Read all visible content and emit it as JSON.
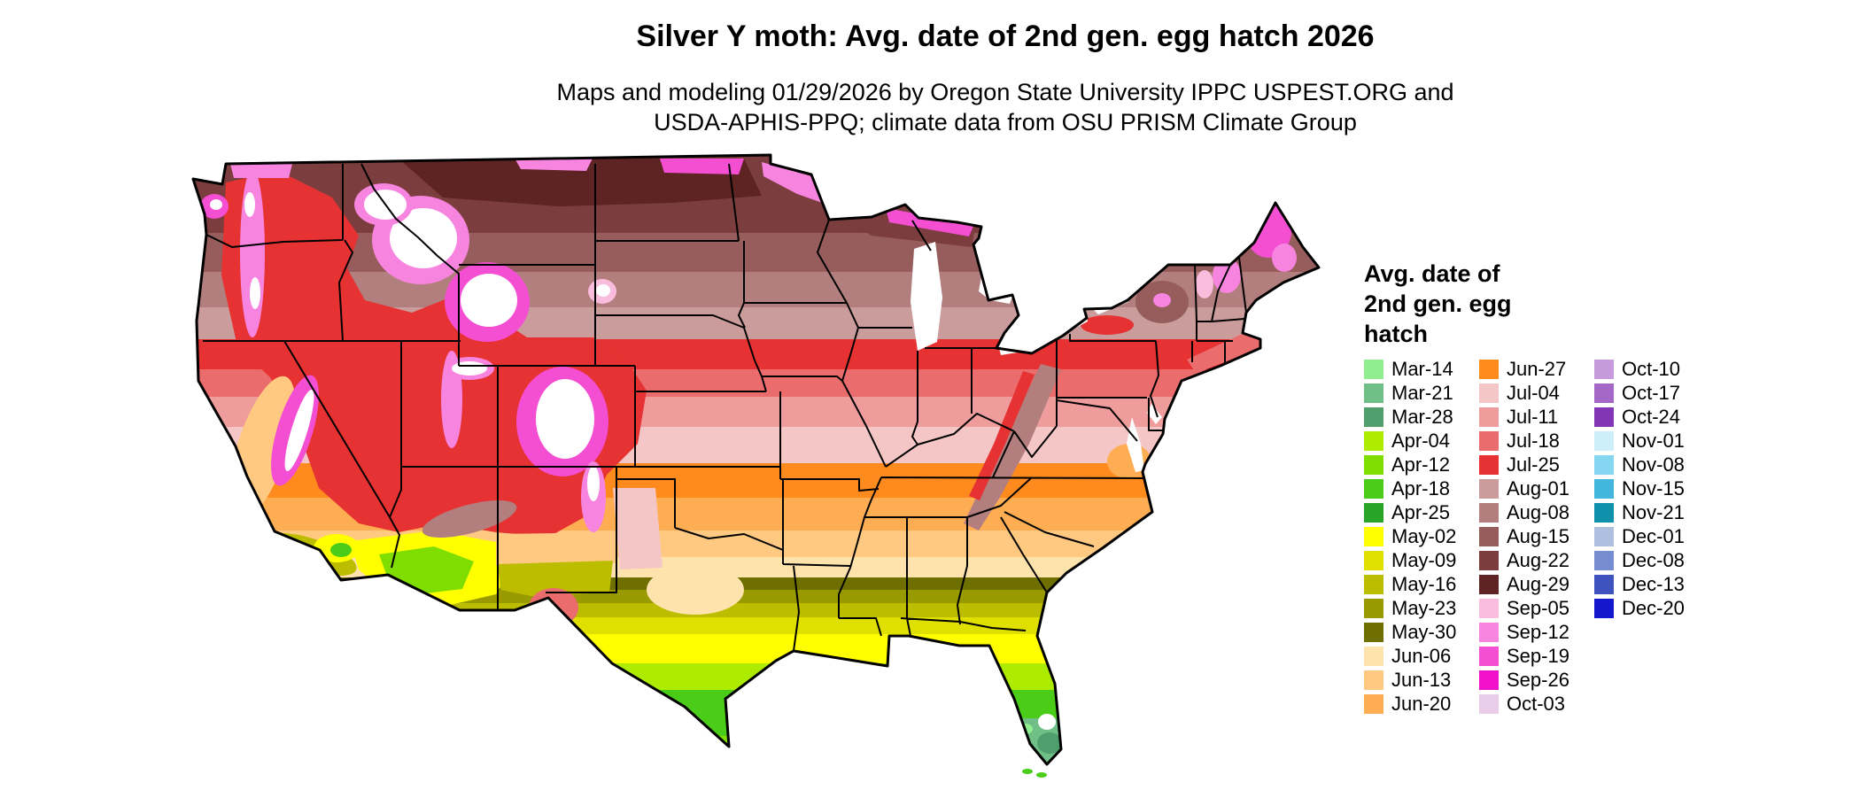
{
  "title": "Silver Y moth: Avg. date of 2nd gen. egg hatch 2026",
  "subtitle_line1": "Maps and modeling 01/29/2026 by Oregon State University IPPC USPEST.ORG and",
  "subtitle_line2": "USDA-APHIS-PPQ; climate data from OSU PRISM Climate Group",
  "map": {
    "name": "contiguous-us-egg-hatch-choropleth",
    "border_color": "#000000",
    "water_color": "#ffffff",
    "nodata_color": "#ffffff"
  },
  "legend": {
    "title_lines": [
      "Avg. date of",
      "2nd gen. egg",
      "hatch"
    ],
    "columns": [
      [
        {
          "label": "Mar-14",
          "color": "#90EE90"
        },
        {
          "label": "Mar-21",
          "color": "#6FBF87"
        },
        {
          "label": "Mar-28",
          "color": "#4F9E6B"
        },
        {
          "label": "Apr-04",
          "color": "#ADEB00"
        },
        {
          "label": "Apr-12",
          "color": "#7FDD00"
        },
        {
          "label": "Apr-18",
          "color": "#4ACC18"
        },
        {
          "label": "Apr-25",
          "color": "#28A428"
        },
        {
          "label": "May-02",
          "color": "#FFFF00"
        },
        {
          "label": "May-09",
          "color": "#E0E000"
        },
        {
          "label": "May-16",
          "color": "#BDBD00"
        },
        {
          "label": "May-23",
          "color": "#999900"
        },
        {
          "label": "May-30",
          "color": "#6F6F00"
        },
        {
          "label": "Jun-06",
          "color": "#FFE3AD"
        },
        {
          "label": "Jun-13",
          "color": "#FFC982"
        },
        {
          "label": "Jun-20",
          "color": "#FFAD52"
        }
      ],
      [
        {
          "label": "Jun-27",
          "color": "#FF8B1F"
        },
        {
          "label": "Jul-04",
          "color": "#F5C6C6"
        },
        {
          "label": "Jul-11",
          "color": "#EF9C9C"
        },
        {
          "label": "Jul-18",
          "color": "#EA6C6C"
        },
        {
          "label": "Jul-25",
          "color": "#E63232"
        },
        {
          "label": "Aug-01",
          "color": "#CA9C9C"
        },
        {
          "label": "Aug-08",
          "color": "#B37E7E"
        },
        {
          "label": "Aug-15",
          "color": "#975C5C"
        },
        {
          "label": "Aug-22",
          "color": "#7B3D3D"
        },
        {
          "label": "Aug-29",
          "color": "#5E2323"
        },
        {
          "label": "Sep-05",
          "color": "#F9BCDD"
        },
        {
          "label": "Sep-12",
          "color": "#F785E0"
        },
        {
          "label": "Sep-19",
          "color": "#F44FD3"
        },
        {
          "label": "Sep-26",
          "color": "#F211CB"
        },
        {
          "label": "Oct-03",
          "color": "#E8CCE8"
        }
      ],
      [
        {
          "label": "Oct-10",
          "color": "#C79BDB"
        },
        {
          "label": "Oct-17",
          "color": "#A468C9"
        },
        {
          "label": "Oct-24",
          "color": "#8236B6"
        },
        {
          "label": "Nov-01",
          "color": "#CDEFFA"
        },
        {
          "label": "Nov-08",
          "color": "#85D6F0"
        },
        {
          "label": "Nov-15",
          "color": "#43B6DE"
        },
        {
          "label": "Nov-21",
          "color": "#0F91AB"
        },
        {
          "label": "Dec-01",
          "color": "#AEBFDF"
        },
        {
          "label": "Dec-08",
          "color": "#768CD0"
        },
        {
          "label": "Dec-13",
          "color": "#3F53BF"
        },
        {
          "label": "Dec-20",
          "color": "#1418CC"
        }
      ]
    ]
  }
}
